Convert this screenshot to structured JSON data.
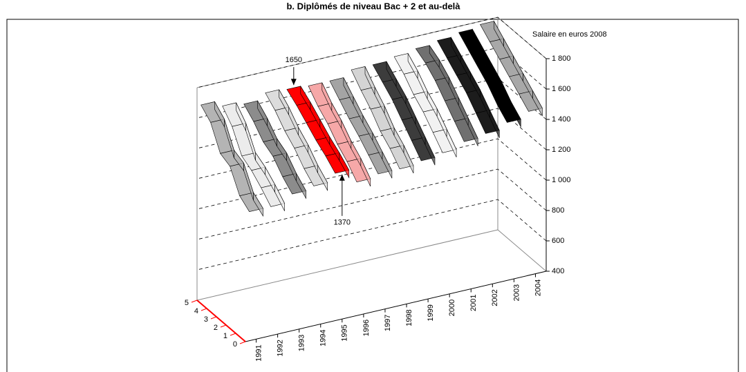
{
  "chart_data": {
    "type": "ribbon3d",
    "title": "b. Diplômés de niveau Bac + 2 et au-delà",
    "ylabel": "Salaire en euros 2008",
    "depth_categories": [
      "0",
      "1",
      "2",
      "3",
      "4",
      "5"
    ],
    "depth_color": "#ff0000",
    "ylim": [
      400,
      1800
    ],
    "yticks": [
      400,
      600,
      800,
      {
        "value": 1000,
        "label": "1 000"
      },
      {
        "value": 1200,
        "label": "1 200"
      },
      {
        "value": 1400,
        "label": "1 400"
      },
      {
        "value": 1600,
        "label": "1 600"
      },
      {
        "value": 1800,
        "label": "1 800"
      }
    ],
    "grid": true,
    "series": [
      {
        "name": "1991",
        "color": "#b4b4b4",
        "values": [
          1250,
          1300,
          1440,
          1470,
          1620,
          1680
        ]
      },
      {
        "name": "1992",
        "color": "#ececec",
        "values": [
          1250,
          1320,
          1380,
          1420,
          1560,
          1640
        ]
      },
      {
        "name": "1993",
        "color": "#8c8c8c",
        "values": [
          1300,
          1360,
          1440,
          1480,
          1560,
          1620
        ]
      },
      {
        "name": "1994",
        "color": "#dcdcdc",
        "values": [
          1320,
          1380,
          1460,
          1520,
          1600,
          1660
        ]
      },
      {
        "name": "1995",
        "color": "#ff0000",
        "values": [
          1370,
          1430,
          1480,
          1540,
          1600,
          1650
        ]
      },
      {
        "name": "1996",
        "color": "#f6a8a8",
        "values": [
          1280,
          1360,
          1420,
          1500,
          1560,
          1640
        ]
      },
      {
        "name": "1997",
        "color": "#a4a4a4",
        "values": [
          1300,
          1370,
          1440,
          1500,
          1570,
          1640
        ]
      },
      {
        "name": "1998",
        "color": "#d4d4d4",
        "values": [
          1300,
          1380,
          1440,
          1530,
          1600,
          1680
        ]
      },
      {
        "name": "1999",
        "color": "#3c3c3c",
        "values": [
          1320,
          1400,
          1480,
          1560,
          1620,
          1680
        ]
      },
      {
        "name": "2000",
        "color": "#f2f2f2",
        "values": [
          1340,
          1420,
          1500,
          1560,
          1640,
          1700
        ]
      },
      {
        "name": "2001",
        "color": "#707070",
        "values": [
          1380,
          1460,
          1540,
          1620,
          1680,
          1720
        ]
      },
      {
        "name": "2002",
        "color": "#1c1c1c",
        "values": [
          1400,
          1480,
          1560,
          1620,
          1680,
          1740
        ]
      },
      {
        "name": "2003",
        "color": "#000000",
        "values": [
          1440,
          1500,
          1580,
          1640,
          1700,
          1760
        ]
      },
      {
        "name": "2004",
        "color": "#a8a8a8",
        "values": [
          1480,
          1540,
          1600,
          1660,
          1720,
          1780
        ]
      }
    ],
    "annotations": [
      {
        "text": "1650",
        "series": 4,
        "point": 5
      },
      {
        "text": "1370",
        "series": 4,
        "point": 0
      }
    ]
  }
}
